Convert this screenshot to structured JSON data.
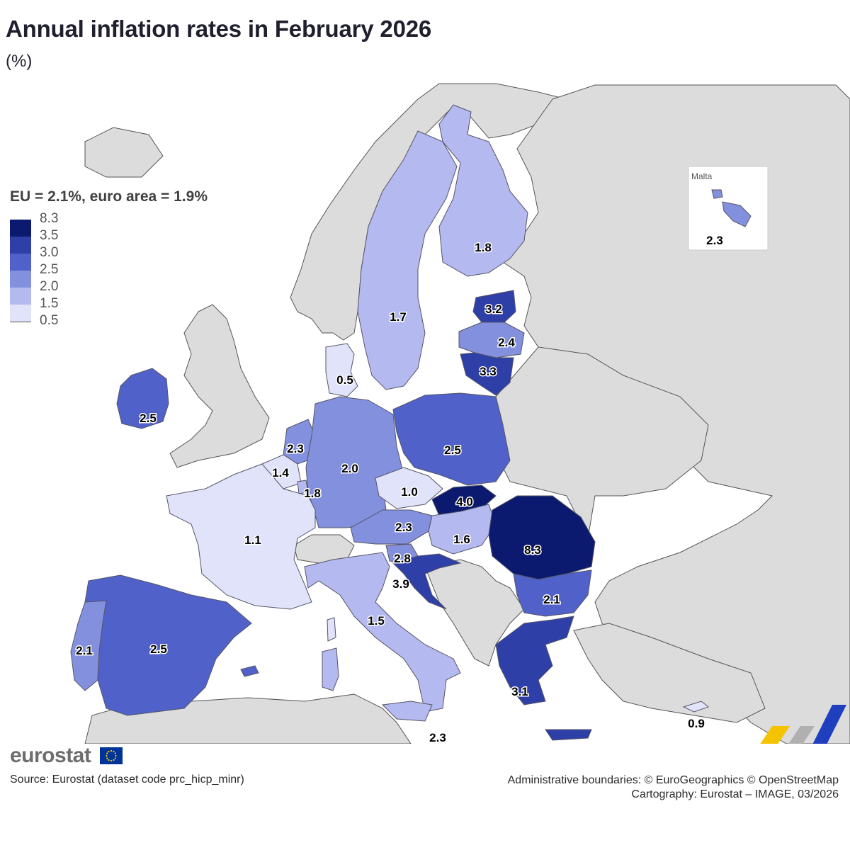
{
  "title": "Annual inflation rates in February 2026",
  "subtitle": "(%)",
  "legend": {
    "heading": "EU = 2.1%, euro area = 1.9%",
    "breaks": [
      "8.3",
      "3.5",
      "3.0",
      "2.5",
      "2.0",
      "1.5",
      "0.5"
    ],
    "colors": [
      "#0b1a6e",
      "#2e3fa8",
      "#5061c9",
      "#8390de",
      "#b4b9f0",
      "#e1e3fa"
    ]
  },
  "colors": {
    "non_eu_land": "#dcdcdc",
    "sea": "#ffffff"
  },
  "inset": {
    "title": "Malta",
    "value": "2.3"
  },
  "countries": [
    {
      "name": "Finland",
      "value": "1.8"
    },
    {
      "name": "Sweden",
      "value": "1.7"
    },
    {
      "name": "Estonia",
      "value": "3.2"
    },
    {
      "name": "Latvia",
      "value": "2.4"
    },
    {
      "name": "Lithuania",
      "value": "3.3"
    },
    {
      "name": "Denmark",
      "value": "0.5"
    },
    {
      "name": "Ireland",
      "value": "2.5"
    },
    {
      "name": "Netherlands",
      "value": "2.3"
    },
    {
      "name": "Belgium",
      "value": "1.4"
    },
    {
      "name": "Luxembourg",
      "value": "1.8"
    },
    {
      "name": "Germany",
      "value": "2.0"
    },
    {
      "name": "Poland",
      "value": "2.5"
    },
    {
      "name": "Czechia",
      "value": "1.0"
    },
    {
      "name": "Slovakia",
      "value": "4.0"
    },
    {
      "name": "Austria",
      "value": "2.3"
    },
    {
      "name": "Hungary",
      "value": "1.6"
    },
    {
      "name": "Romania",
      "value": "8.3"
    },
    {
      "name": "France",
      "value": "1.1"
    },
    {
      "name": "Slovenia",
      "value": "2.8"
    },
    {
      "name": "Croatia",
      "value": "3.9"
    },
    {
      "name": "Bulgaria",
      "value": "2.1"
    },
    {
      "name": "Italy",
      "value": "1.5"
    },
    {
      "name": "Portugal",
      "value": "2.1"
    },
    {
      "name": "Spain",
      "value": "2.5"
    },
    {
      "name": "Greece",
      "value": "3.1"
    },
    {
      "name": "Malta",
      "value": "2.3"
    },
    {
      "name": "Cyprus",
      "value": "0.9"
    }
  ],
  "logo_text": "eurostat",
  "source": "Source: Eurostat (dataset code prc_hicp_minr)",
  "attribution": {
    "line1": "Administrative boundaries: © EuroGeographics © OpenStreetMap",
    "line2": "Cartography: Eurostat – IMAGE, 03/2026"
  }
}
